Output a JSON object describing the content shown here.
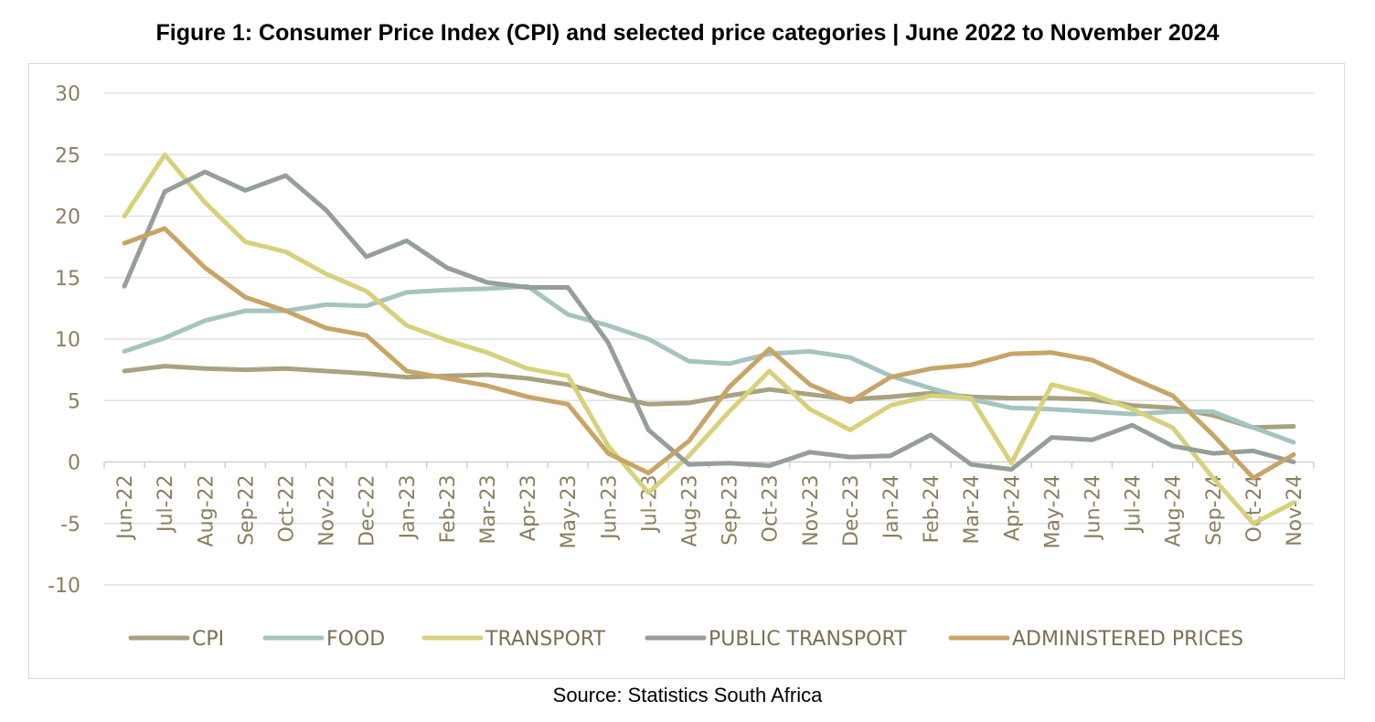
{
  "title": "Figure 1: Consumer Price Index (CPI) and selected price categories | June 2022 to November 2024",
  "source": "Source: Statistics South Africa",
  "chart_data": {
    "type": "line",
    "title": "Figure 1: Consumer Price Index (CPI) and selected price categories | June 2022 to November 2024",
    "xlabel": "",
    "ylabel": "",
    "ylim": [
      -10,
      30
    ],
    "yticks": [
      30,
      25,
      20,
      15,
      10,
      5,
      0,
      -5,
      -10
    ],
    "grid": true,
    "legend_position": "bottom",
    "categories": [
      "Jun-22",
      "Jul-22",
      "Aug-22",
      "Sep-22",
      "Oct-22",
      "Nov-22",
      "Dec-22",
      "Jan-23",
      "Feb-23",
      "Mar-23",
      "Apr-23",
      "May-23",
      "Jun-23",
      "Jul-23",
      "Aug-23",
      "Sep-23",
      "Oct-23",
      "Nov-23",
      "Dec-23",
      "Jan-24",
      "Feb-24",
      "Mar-24",
      "Apr-24",
      "May-24",
      "Jun-24",
      "Jul-24",
      "Aug-24",
      "Sep-24",
      "Oct-24",
      "Nov-24"
    ],
    "series": [
      {
        "name": "CPI",
        "color": "#a8a27f",
        "values": [
          7.4,
          7.8,
          7.6,
          7.5,
          7.6,
          7.4,
          7.2,
          6.9,
          7.0,
          7.1,
          6.8,
          6.3,
          5.4,
          4.7,
          4.8,
          5.4,
          5.9,
          5.5,
          5.1,
          5.3,
          5.6,
          5.3,
          5.2,
          5.2,
          5.1,
          4.6,
          4.4,
          3.8,
          2.8,
          2.9
        ]
      },
      {
        "name": "FOOD",
        "color": "#a5c4c0",
        "values": [
          9.0,
          10.1,
          11.5,
          12.3,
          12.3,
          12.8,
          12.7,
          13.8,
          14.0,
          14.1,
          14.3,
          12.0,
          11.1,
          10.0,
          8.2,
          8.0,
          8.8,
          9.0,
          8.5,
          7.0,
          6.0,
          5.1,
          4.4,
          4.3,
          4.1,
          3.9,
          4.1,
          4.1,
          2.8,
          1.6
        ]
      },
      {
        "name": "TRANSPORT",
        "color": "#d7d17c",
        "values": [
          20.0,
          25.0,
          21.1,
          17.9,
          17.1,
          15.3,
          13.9,
          11.1,
          9.9,
          8.9,
          7.6,
          7.0,
          1.3,
          -2.5,
          0.5,
          4.1,
          7.4,
          4.3,
          2.6,
          4.6,
          5.4,
          5.2,
          -0.1,
          6.3,
          5.5,
          4.3,
          2.8,
          -1.3,
          -5.0,
          -3.3
        ]
      },
      {
        "name": "PUBLIC TRANSPORT",
        "color": "#969e98",
        "values": [
          14.3,
          22.0,
          23.6,
          22.1,
          23.3,
          20.5,
          16.7,
          18.0,
          15.8,
          14.6,
          14.2,
          14.2,
          9.7,
          2.6,
          -0.2,
          -0.1,
          -0.3,
          0.8,
          0.4,
          0.5,
          2.2,
          -0.2,
          -0.6,
          2.0,
          1.8,
          3.0,
          1.3,
          0.7,
          0.9,
          0.0
        ]
      },
      {
        "name": "ADMINISTERED PRICES",
        "color": "#c8a467",
        "values": [
          17.8,
          19.0,
          15.8,
          13.4,
          12.3,
          10.9,
          10.3,
          7.4,
          6.8,
          6.2,
          5.3,
          4.7,
          0.7,
          -0.9,
          1.7,
          6.1,
          9.2,
          6.3,
          4.9,
          6.9,
          7.6,
          7.9,
          8.8,
          8.9,
          8.3,
          6.8,
          5.4,
          2.2,
          -1.3,
          0.6
        ]
      }
    ]
  }
}
